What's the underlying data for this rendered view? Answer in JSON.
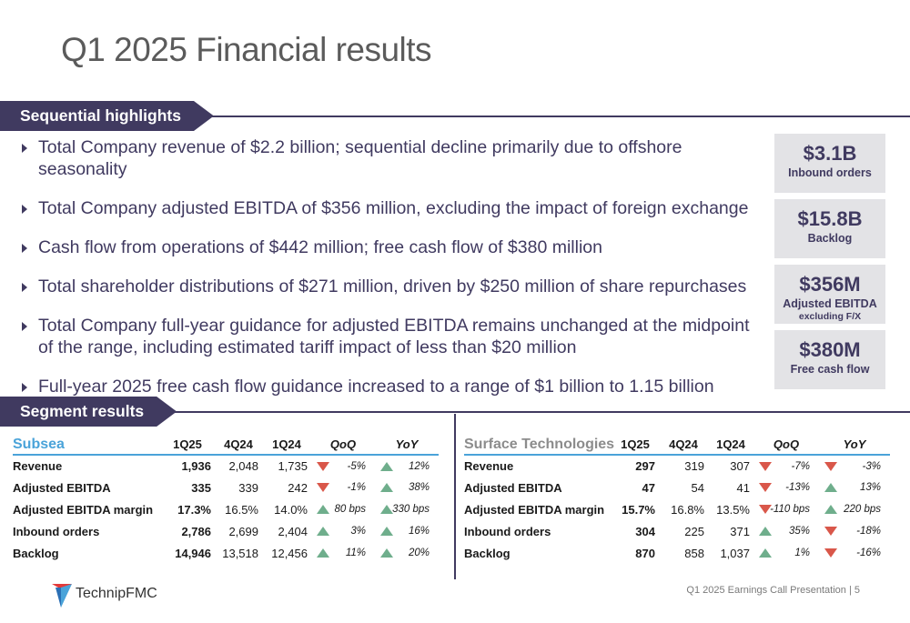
{
  "title": "Q1 2025 Financial results",
  "sections": {
    "highlights": "Sequential highlights",
    "segments": "Segment results"
  },
  "bullets": [
    "Total Company revenue of $2.2 billion; sequential decline primarily due to offshore seasonality",
    "Total Company adjusted EBITDA of $356 million, excluding the impact of foreign exchange",
    "Cash flow from operations of $442 million; free cash flow of $380 million",
    "Total shareholder distributions of $271 million, driven by $250 million of share repurchases",
    "Total Company full-year guidance for adjusted EBITDA remains unchanged at the midpoint of the range, including estimated tariff impact of less than $20 million",
    "Full-year 2025 free cash flow guidance increased to a range of $1 billion to 1.15 billion"
  ],
  "kpis": [
    {
      "value": "$3.1B",
      "label": "Inbound orders",
      "sub": ""
    },
    {
      "value": "$15.8B",
      "label": "Backlog",
      "sub": ""
    },
    {
      "value": "$356M",
      "label": "Adjusted EBITDA",
      "sub": "excluding F/X"
    },
    {
      "value": "$380M",
      "label": "Free cash flow",
      "sub": ""
    }
  ],
  "subsea": {
    "name": "Subsea",
    "headers": [
      "1Q25",
      "4Q24",
      "1Q24",
      "QoQ",
      "YoY"
    ],
    "rows": [
      {
        "label": "Revenue",
        "q1": "1,936",
        "q4": "2,048",
        "q0": "1,735",
        "qoq": "-5%",
        "qoq_dir": "down",
        "yoy": "12%",
        "yoy_dir": "up"
      },
      {
        "label": "Adjusted EBITDA",
        "q1": "335",
        "q4": "339",
        "q0": "242",
        "qoq": "-1%",
        "qoq_dir": "down",
        "yoy": "38%",
        "yoy_dir": "up"
      },
      {
        "label": "Adjusted EBITDA margin",
        "q1": "17.3%",
        "q4": "16.5%",
        "q0": "14.0%",
        "qoq": "80 bps",
        "qoq_dir": "up",
        "yoy": "330 bps",
        "yoy_dir": "up"
      },
      {
        "label": "Inbound orders",
        "q1": "2,786",
        "q4": "2,699",
        "q0": "2,404",
        "qoq": "3%",
        "qoq_dir": "up",
        "yoy": "16%",
        "yoy_dir": "up"
      },
      {
        "label": "Backlog",
        "q1": "14,946",
        "q4": "13,518",
        "q0": "12,456",
        "qoq": "11%",
        "qoq_dir": "up",
        "yoy": "20%",
        "yoy_dir": "up"
      }
    ]
  },
  "surface": {
    "name": "Surface Technologies",
    "headers": [
      "1Q25",
      "4Q24",
      "1Q24",
      "QoQ",
      "YoY"
    ],
    "rows": [
      {
        "label": "Revenue",
        "q1": "297",
        "q4": "319",
        "q0": "307",
        "qoq": "-7%",
        "qoq_dir": "down",
        "yoy": "-3%",
        "yoy_dir": "down"
      },
      {
        "label": "Adjusted EBITDA",
        "q1": "47",
        "q4": "54",
        "q0": "41",
        "qoq": "-13%",
        "qoq_dir": "down",
        "yoy": "13%",
        "yoy_dir": "up"
      },
      {
        "label": "Adjusted EBITDA margin",
        "q1": "15.7%",
        "q4": "16.8%",
        "q0": "13.5%",
        "qoq": "-110 bps",
        "qoq_dir": "down",
        "yoy": "220 bps",
        "yoy_dir": "up"
      },
      {
        "label": "Inbound orders",
        "q1": "304",
        "q4": "225",
        "q0": "371",
        "qoq": "35%",
        "qoq_dir": "up",
        "yoy": "-18%",
        "yoy_dir": "down"
      },
      {
        "label": "Backlog",
        "q1": "870",
        "q4": "858",
        "q0": "1,037",
        "qoq": "1%",
        "qoq_dir": "up",
        "yoy": "-16%",
        "yoy_dir": "down"
      }
    ]
  },
  "logo_text": "TechnipFMC",
  "footer": "Q1 2025 Earnings Call Presentation  |  5",
  "colors": {
    "brand": "#403a60",
    "accent": "#4aa3d9",
    "up": "#6fae8c",
    "down": "#d9574a",
    "kpi_bg": "#e3e3e6"
  }
}
